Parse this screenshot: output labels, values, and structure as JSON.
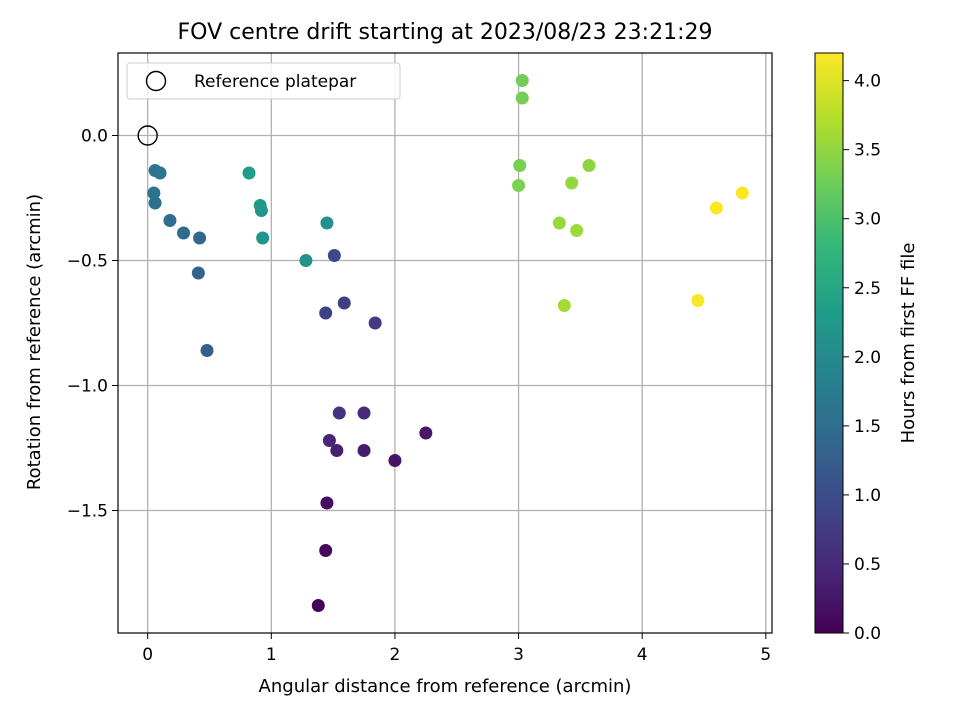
{
  "chart_data": {
    "type": "scatter",
    "title": "FOV centre drift starting at 2023/08/23 23:21:29",
    "xlabel": "Angular distance from reference (arcmin)",
    "ylabel": "Rotation from reference (arcmin)",
    "xlim": [
      -0.24,
      5.05
    ],
    "ylim": [
      -1.99,
      0.33
    ],
    "xticks": [
      0,
      1,
      2,
      3,
      4,
      5
    ],
    "xtick_labels": [
      "0",
      "1",
      "2",
      "3",
      "4",
      "5"
    ],
    "yticks": [
      0.0,
      -0.5,
      -1.0,
      -1.5
    ],
    "ytick_labels": [
      "0.0",
      "−0.5",
      "−1.0",
      "−1.5"
    ],
    "grid": true,
    "legend": {
      "placement": "top-left",
      "entries": [
        "Reference platepar"
      ]
    },
    "reference": {
      "x": 0,
      "y": 0
    },
    "colorbar": {
      "label": "Hours from first FF file",
      "min": 0.0,
      "max": 4.2,
      "ticks": [
        0.0,
        0.5,
        1.0,
        1.5,
        2.0,
        2.5,
        3.0,
        3.5,
        4.0
      ],
      "tick_labels": [
        "0.0",
        "0.5",
        "1.0",
        "1.5",
        "2.0",
        "2.5",
        "3.0",
        "3.5",
        "4.0"
      ],
      "colormap": [
        "#440154",
        "#482878",
        "#3e4989",
        "#31688e",
        "#26828e",
        "#1f9e89",
        "#35b779",
        "#6ece58",
        "#b5de2b",
        "#fde725"
      ]
    },
    "points": [
      {
        "x": 1.38,
        "y": -1.88,
        "c": 0.02
      },
      {
        "x": 1.44,
        "y": -1.66,
        "c": 0.08
      },
      {
        "x": 1.45,
        "y": -1.47,
        "c": 0.14
      },
      {
        "x": 2.0,
        "y": -1.3,
        "c": 0.24
      },
      {
        "x": 2.25,
        "y": -1.19,
        "c": 0.28
      },
      {
        "x": 1.75,
        "y": -1.26,
        "c": 0.33
      },
      {
        "x": 1.53,
        "y": -1.26,
        "c": 0.38
      },
      {
        "x": 1.47,
        "y": -1.22,
        "c": 0.44
      },
      {
        "x": 1.75,
        "y": -1.11,
        "c": 0.5
      },
      {
        "x": 1.55,
        "y": -1.11,
        "c": 0.62
      },
      {
        "x": 1.84,
        "y": -0.75,
        "c": 0.72
      },
      {
        "x": 1.59,
        "y": -0.67,
        "c": 0.78
      },
      {
        "x": 1.44,
        "y": -0.71,
        "c": 0.82
      },
      {
        "x": 1.51,
        "y": -0.48,
        "c": 0.9
      },
      {
        "x": 0.48,
        "y": -0.86,
        "c": 1.26
      },
      {
        "x": 0.41,
        "y": -0.55,
        "c": 1.33
      },
      {
        "x": 0.42,
        "y": -0.41,
        "c": 1.4
      },
      {
        "x": 0.29,
        "y": -0.39,
        "c": 1.45
      },
      {
        "x": 0.18,
        "y": -0.34,
        "c": 1.5
      },
      {
        "x": 0.06,
        "y": -0.27,
        "c": 1.55
      },
      {
        "x": 0.05,
        "y": -0.23,
        "c": 1.58
      },
      {
        "x": 0.06,
        "y": -0.14,
        "c": 1.62
      },
      {
        "x": 0.1,
        "y": -0.15,
        "c": 1.65
      },
      {
        "x": 1.45,
        "y": -0.35,
        "c": 2.1
      },
      {
        "x": 1.28,
        "y": -0.5,
        "c": 2.15
      },
      {
        "x": 0.93,
        "y": -0.41,
        "c": 2.2
      },
      {
        "x": 0.92,
        "y": -0.3,
        "c": 2.22
      },
      {
        "x": 0.91,
        "y": -0.28,
        "c": 2.25
      },
      {
        "x": 0.82,
        "y": -0.15,
        "c": 2.3
      },
      {
        "x": 3.03,
        "y": 0.22,
        "c": 3.28
      },
      {
        "x": 3.03,
        "y": 0.15,
        "c": 3.3
      },
      {
        "x": 3.01,
        "y": -0.12,
        "c": 3.32
      },
      {
        "x": 3.0,
        "y": -0.2,
        "c": 3.35
      },
      {
        "x": 3.57,
        "y": -0.12,
        "c": 3.48
      },
      {
        "x": 3.43,
        "y": -0.19,
        "c": 3.52
      },
      {
        "x": 3.33,
        "y": -0.35,
        "c": 3.55
      },
      {
        "x": 3.47,
        "y": -0.38,
        "c": 3.58
      },
      {
        "x": 3.37,
        "y": -0.68,
        "c": 3.62
      },
      {
        "x": 4.45,
        "y": -0.66,
        "c": 4.18
      },
      {
        "x": 4.6,
        "y": -0.29,
        "c": 4.2
      },
      {
        "x": 4.81,
        "y": -0.23,
        "c": 4.2
      }
    ]
  }
}
